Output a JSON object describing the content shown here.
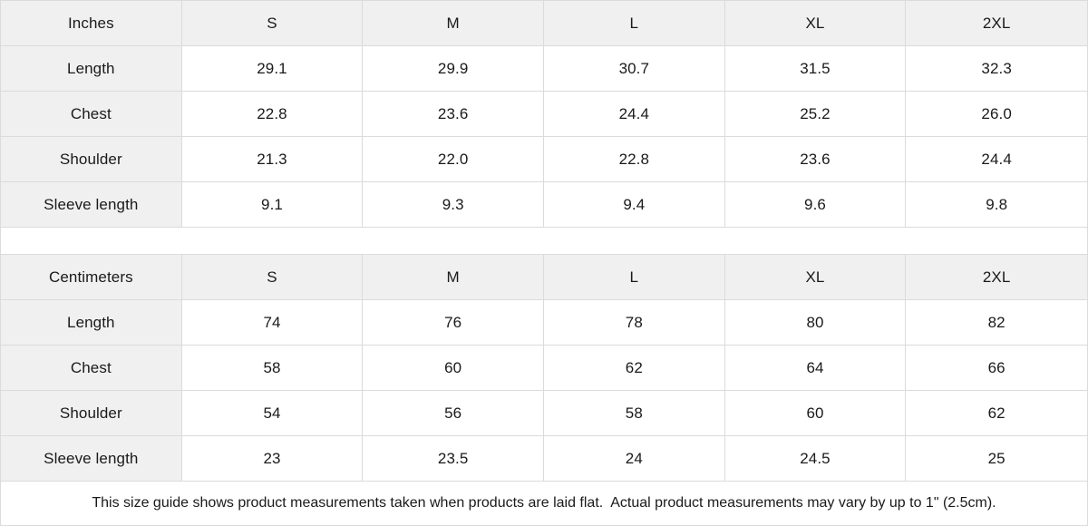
{
  "chart_data": [
    {
      "type": "table",
      "unit": "Inches",
      "columns": [
        "Inches",
        "S",
        "M",
        "L",
        "XL",
        "2XL"
      ],
      "rows": [
        {
          "label": "Length",
          "values": [
            "29.1",
            "29.9",
            "30.7",
            "31.5",
            "32.3"
          ]
        },
        {
          "label": "Chest",
          "values": [
            "22.8",
            "23.6",
            "24.4",
            "25.2",
            "26.0"
          ]
        },
        {
          "label": "Shoulder",
          "values": [
            "21.3",
            "22.0",
            "22.8",
            "23.6",
            "24.4"
          ]
        },
        {
          "label": "Sleeve length",
          "values": [
            "9.1",
            "9.3",
            "9.4",
            "9.6",
            "9.8"
          ]
        }
      ]
    },
    {
      "type": "table",
      "unit": "Centimeters",
      "columns": [
        "Centimeters",
        "S",
        "M",
        "L",
        "XL",
        "2XL"
      ],
      "rows": [
        {
          "label": "Length",
          "values": [
            "74",
            "76",
            "78",
            "80",
            "82"
          ]
        },
        {
          "label": "Chest",
          "values": [
            "58",
            "60",
            "62",
            "64",
            "66"
          ]
        },
        {
          "label": "Shoulder",
          "values": [
            "54",
            "56",
            "58",
            "60",
            "62"
          ]
        },
        {
          "label": "Sleeve length",
          "values": [
            "23",
            "23.5",
            "24",
            "24.5",
            "25"
          ]
        }
      ]
    }
  ],
  "footer": {
    "note": "This size guide shows product measurements taken when products are laid flat.  Actual product measurements may vary by up to 1\" (2.5cm)."
  },
  "colors": {
    "shaded_bg": "#f0f0f0",
    "border": "#dbdbdb",
    "text": "#1a1a1a",
    "background": "#ffffff"
  }
}
